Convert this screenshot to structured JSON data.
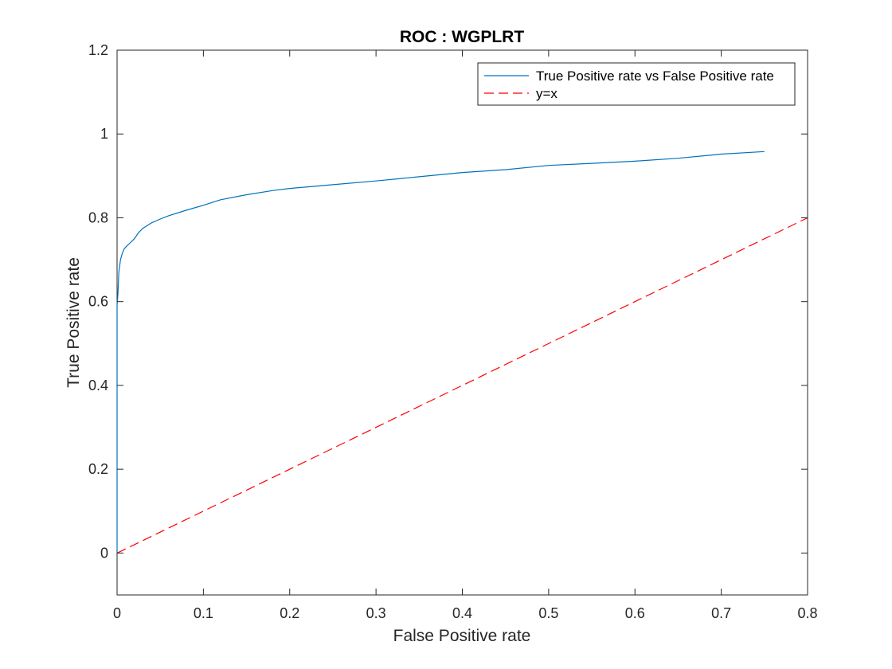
{
  "chart_data": {
    "type": "line",
    "title": "ROC : WGPLRT",
    "xlabel": "False Positive rate",
    "ylabel": "True Positive rate",
    "xlim": [
      0,
      0.8
    ],
    "ylim": [
      -0.1,
      1.2
    ],
    "xticks": [
      "0",
      "0.1",
      "0.2",
      "0.3",
      "0.4",
      "0.5",
      "0.6",
      "0.7",
      "0.8"
    ],
    "yticks": [
      "0",
      "0.2",
      "0.4",
      "0.6",
      "0.8",
      "1",
      "1.2"
    ],
    "grid": false,
    "legend_position": "top-right",
    "series": [
      {
        "name": "True Positive rate vs False Positive rate",
        "color": "#0072BD",
        "style": "solid",
        "x": [
          0,
          0,
          0.001,
          0.002,
          0.004,
          0.006,
          0.008,
          0.01,
          0.015,
          0.02,
          0.025,
          0.03,
          0.04,
          0.05,
          0.06,
          0.08,
          0.1,
          0.12,
          0.15,
          0.18,
          0.2,
          0.25,
          0.3,
          0.35,
          0.4,
          0.45,
          0.5,
          0.55,
          0.6,
          0.65,
          0.7,
          0.75
        ],
        "y": [
          0,
          0.59,
          0.62,
          0.67,
          0.7,
          0.715,
          0.725,
          0.73,
          0.74,
          0.75,
          0.765,
          0.775,
          0.788,
          0.797,
          0.805,
          0.818,
          0.83,
          0.843,
          0.855,
          0.865,
          0.87,
          0.879,
          0.888,
          0.898,
          0.908,
          0.915,
          0.925,
          0.93,
          0.935,
          0.942,
          0.952,
          0.958
        ]
      },
      {
        "name": "y=x",
        "color": "#FF0000",
        "style": "dashed",
        "x": [
          0,
          0.8
        ],
        "y": [
          0,
          0.8
        ]
      }
    ]
  }
}
